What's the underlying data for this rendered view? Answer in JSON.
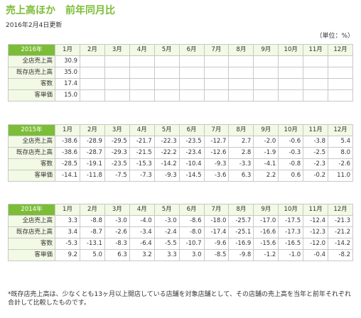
{
  "page": {
    "title": "売上高ほか　前年同月比",
    "updated": "2016年2月4日更新",
    "unit": "（単位：%）",
    "note": "*既存店売上高は、少なくとも13ヶ月以上開店している店舗を対象店舗として、その店舗の売上高を当年と前年それぞれ合計して比較したものです。"
  },
  "tables": [
    {
      "year": "2016年",
      "months": [
        "1月",
        "2月",
        "3月",
        "4月",
        "5月",
        "6月",
        "7月",
        "8月",
        "9月",
        "10月",
        "11月",
        "12月"
      ],
      "rows": [
        {
          "label": "全店売上高",
          "values": [
            "30.9",
            "",
            "",
            "",
            "",
            "",
            "",
            "",
            "",
            "",
            "",
            ""
          ]
        },
        {
          "label": "既存店売上高",
          "values": [
            "35.0",
            "",
            "",
            "",
            "",
            "",
            "",
            "",
            "",
            "",
            "",
            ""
          ]
        },
        {
          "label": "客数",
          "values": [
            "17.4",
            "",
            "",
            "",
            "",
            "",
            "",
            "",
            "",
            "",
            "",
            ""
          ]
        },
        {
          "label": "客単価",
          "values": [
            "15.0",
            "",
            "",
            "",
            "",
            "",
            "",
            "",
            "",
            "",
            "",
            ""
          ]
        }
      ]
    },
    {
      "year": "2015年",
      "months": [
        "1月",
        "2月",
        "3月",
        "4月",
        "5月",
        "6月",
        "7月",
        "8月",
        "9月",
        "10月",
        "11月",
        "12月"
      ],
      "rows": [
        {
          "label": "全店売上高",
          "values": [
            "-38.6",
            "-28.9",
            "-29.5",
            "-21.7",
            "-22.3",
            "-23.5",
            "-12.7",
            "2.7",
            "-2.0",
            "-0.6",
            "-3.8",
            "5.4"
          ]
        },
        {
          "label": "既存店売上高",
          "values": [
            "-38.6",
            "-28.7",
            "-29.3",
            "-21.5",
            "-22.2",
            "-23.4",
            "-12.6",
            "2.8",
            "-1.9",
            "-0.3",
            "-2.5",
            "8.0"
          ]
        },
        {
          "label": "客数",
          "values": [
            "-28.5",
            "-19.1",
            "-23.5",
            "-15.3",
            "-14.2",
            "-10.4",
            "-9.3",
            "-3.3",
            "-4.1",
            "-0.8",
            "-2.3",
            "-2.6"
          ]
        },
        {
          "label": "客単価",
          "values": [
            "-14.1",
            "-11.8",
            "-7.5",
            "-7.3",
            "-9.3",
            "-14.5",
            "-3.6",
            "6.3",
            "2.2",
            "0.6",
            "-0.2",
            "11.0"
          ]
        }
      ]
    },
    {
      "year": "2014年",
      "months": [
        "1月",
        "2月",
        "3月",
        "4月",
        "5月",
        "6月",
        "7月",
        "8月",
        "9月",
        "10月",
        "11月",
        "12月"
      ],
      "rows": [
        {
          "label": "全店売上高",
          "values": [
            "3.3",
            "-8.8",
            "-3.0",
            "-4.0",
            "-3.0",
            "-8.6",
            "-18.0",
            "-25.7",
            "-17.0",
            "-17.5",
            "-12.4",
            "-21.3"
          ]
        },
        {
          "label": "既存店売上高",
          "values": [
            "3.4",
            "-8.7",
            "-2.6",
            "-3.4",
            "-2.4",
            "-8.0",
            "-17.4",
            "-25.1",
            "-16.6",
            "-17.3",
            "-12.3",
            "-21.2"
          ]
        },
        {
          "label": "客数",
          "values": [
            "-5.3",
            "-13.1",
            "-8.3",
            "-6.4",
            "-5.5",
            "-10.7",
            "-9.6",
            "-16.9",
            "-15.6",
            "-16.5",
            "-12.0",
            "-14.2"
          ]
        },
        {
          "label": "客単価",
          "values": [
            "9.2",
            "5.0",
            "6.3",
            "3.2",
            "3.3",
            "3.0",
            "-8.5",
            "-9.8",
            "-1.2",
            "-1.0",
            "-0.4",
            "-8.2"
          ]
        }
      ]
    }
  ]
}
